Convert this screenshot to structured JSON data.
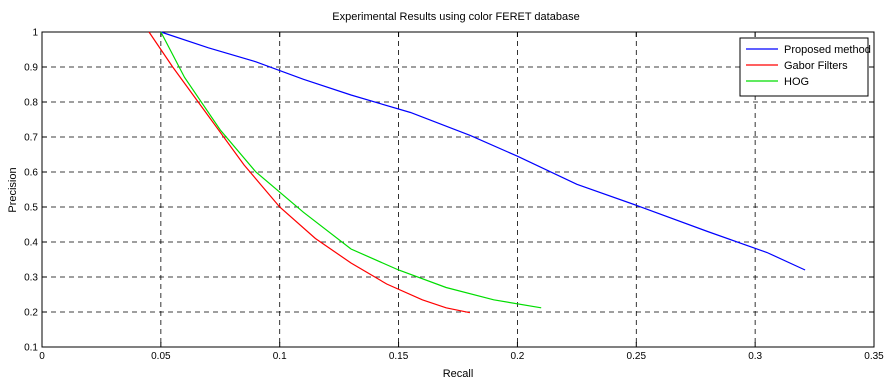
{
  "chart_data": {
    "type": "line",
    "title": "Experimental Results using color FERET database",
    "xlabel": "Recall",
    "ylabel": "Precision",
    "xlim": [
      0,
      0.35
    ],
    "ylim": [
      0.1,
      1
    ],
    "xticks": [
      0,
      0.05,
      0.1,
      0.15,
      0.2,
      0.25,
      0.3,
      0.35
    ],
    "yticks": [
      0.1,
      0.2,
      0.3,
      0.4,
      0.5,
      0.6,
      0.7,
      0.8,
      0.9,
      1
    ],
    "xtick_labels": [
      "0",
      "0.05",
      "0.1",
      "0.15",
      "0.2",
      "0.25",
      "0.3",
      "0.35"
    ],
    "ytick_labels": [
      "0.1",
      "0.2",
      "0.3",
      "0.4",
      "0.5",
      "0.6",
      "0.7",
      "0.8",
      "0.9",
      "1"
    ],
    "grid": true,
    "legend_position": "top-right",
    "series": [
      {
        "name": "Proposed method",
        "color": "#0000ff",
        "x": [
          0.05,
          0.07,
          0.09,
          0.11,
          0.13,
          0.155,
          0.18,
          0.2,
          0.225,
          0.25,
          0.28,
          0.305,
          0.321
        ],
        "y": [
          1.0,
          0.955,
          0.915,
          0.865,
          0.82,
          0.77,
          0.705,
          0.645,
          0.565,
          0.505,
          0.43,
          0.37,
          0.32
        ]
      },
      {
        "name": "Gabor Filters",
        "color": "#ff0000",
        "x": [
          0.045,
          0.055,
          0.07,
          0.085,
          0.1,
          0.115,
          0.13,
          0.145,
          0.16,
          0.17,
          0.18
        ],
        "y": [
          1.0,
          0.9,
          0.76,
          0.62,
          0.5,
          0.41,
          0.34,
          0.28,
          0.235,
          0.212,
          0.198
        ]
      },
      {
        "name": "HOG",
        "color": "#00dd00",
        "x": [
          0.05,
          0.06,
          0.075,
          0.09,
          0.11,
          0.13,
          0.15,
          0.17,
          0.19,
          0.21
        ],
        "y": [
          1.0,
          0.87,
          0.72,
          0.6,
          0.485,
          0.38,
          0.32,
          0.27,
          0.235,
          0.212
        ]
      }
    ]
  }
}
